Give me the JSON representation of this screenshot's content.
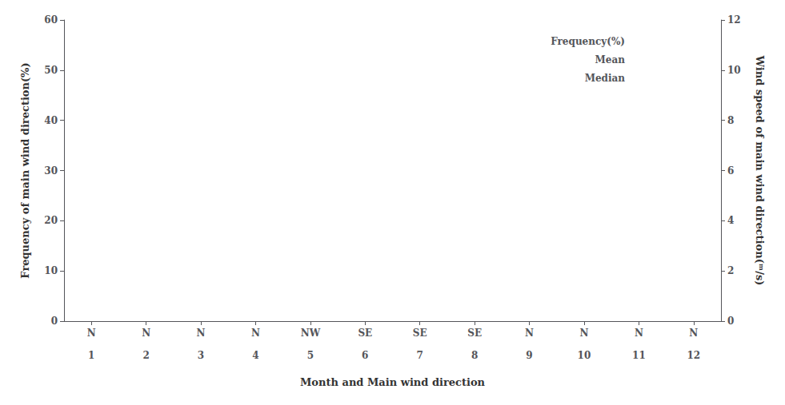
{
  "chart_data": {
    "type": "line",
    "title": "",
    "xlabel": "Month and Main wind direction",
    "ylabel": "Frequency of main wind direction(%)",
    "y2label": "Wind speed of main wind direction(ᵐ/s)",
    "categories": [
      "N\n\n1",
      "N\n\n2",
      "N\n\n3",
      "N\n\n4",
      "NW\n\n5",
      "SE\n\n6",
      "SE\n\n7",
      "SE\n\n8",
      "N\n\n9",
      "N\n\n10",
      "N\n\n11",
      "N\n\n12"
    ],
    "series": [
      {
        "name": "Frequency(%)",
        "values": [
          null,
          null,
          null,
          null,
          null,
          null,
          null,
          null,
          null,
          null,
          null,
          null
        ]
      },
      {
        "name": "Mean",
        "values": [
          null,
          null,
          null,
          null,
          null,
          null,
          null,
          null,
          null,
          null,
          null,
          null
        ]
      },
      {
        "name": "Median",
        "values": [
          null,
          null,
          null,
          null,
          null,
          null,
          null,
          null,
          null,
          null,
          null,
          null
        ]
      }
    ],
    "ylim": [
      0,
      60
    ],
    "yticks": [
      0,
      10,
      20,
      30,
      40,
      50,
      60
    ],
    "y2lim": [
      0,
      12
    ],
    "y2ticks": [
      0,
      2,
      4,
      6,
      8,
      10,
      12
    ],
    "grid": false,
    "legend": "upper right"
  }
}
